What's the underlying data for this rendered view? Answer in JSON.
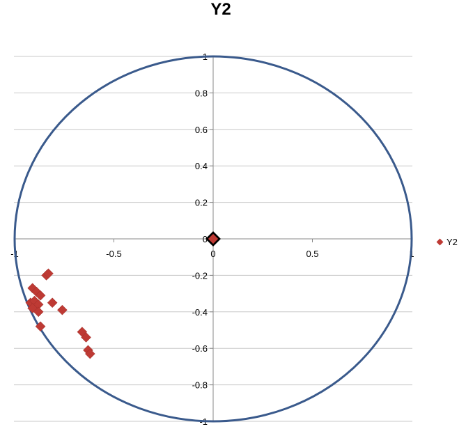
{
  "chart_data": {
    "type": "scatter",
    "title": "Y2",
    "xlim": [
      -1,
      1
    ],
    "ylim": [
      -1,
      1
    ],
    "x_ticks": [
      {
        "value": -1,
        "label": "-1"
      },
      {
        "value": -0.5,
        "label": "-0.5"
      },
      {
        "value": 0,
        "label": "0"
      },
      {
        "value": 0.5,
        "label": "0.5"
      },
      {
        "value": 1,
        "label": "1"
      }
    ],
    "y_ticks": [
      {
        "value": 1,
        "label": "1"
      },
      {
        "value": 0.8,
        "label": "0.8"
      },
      {
        "value": 0.6,
        "label": "0.6"
      },
      {
        "value": 0.4,
        "label": "0.4"
      },
      {
        "value": 0.2,
        "label": "0.2"
      },
      {
        "value": 0,
        "label": "0"
      },
      {
        "value": -0.2,
        "label": "-0.2"
      },
      {
        "value": -0.4,
        "label": "-0.4"
      },
      {
        "value": -0.6,
        "label": "-0.6"
      },
      {
        "value": -0.8,
        "label": "-0.8"
      },
      {
        "value": -1,
        "label": "-1"
      }
    ],
    "grid": "horizontal",
    "legend_position": "right",
    "unit_circle": true,
    "colors": {
      "marker": "#be3a34",
      "circle": "#3a5a8c",
      "grid": "#c8c8c8",
      "origin_marker": "#000000"
    },
    "series": [
      {
        "name": "Y2",
        "points": [
          {
            "x": -0.84,
            "y": -0.2
          },
          {
            "x": -0.83,
            "y": -0.19
          },
          {
            "x": -0.91,
            "y": -0.27
          },
          {
            "x": -0.89,
            "y": -0.29
          },
          {
            "x": -0.87,
            "y": -0.31
          },
          {
            "x": -0.92,
            "y": -0.35
          },
          {
            "x": -0.9,
            "y": -0.34
          },
          {
            "x": -0.88,
            "y": -0.36
          },
          {
            "x": -0.91,
            "y": -0.38
          },
          {
            "x": -0.88,
            "y": -0.4
          },
          {
            "x": -0.81,
            "y": -0.35
          },
          {
            "x": -0.76,
            "y": -0.39
          },
          {
            "x": -0.87,
            "y": -0.48
          },
          {
            "x": -0.66,
            "y": -0.51
          },
          {
            "x": -0.64,
            "y": -0.54
          },
          {
            "x": -0.63,
            "y": -0.61
          },
          {
            "x": -0.62,
            "y": -0.63
          },
          {
            "x": 0.0,
            "y": 0.0
          }
        ]
      }
    ],
    "origin_point": {
      "x": 0.0,
      "y": 0.0
    }
  }
}
